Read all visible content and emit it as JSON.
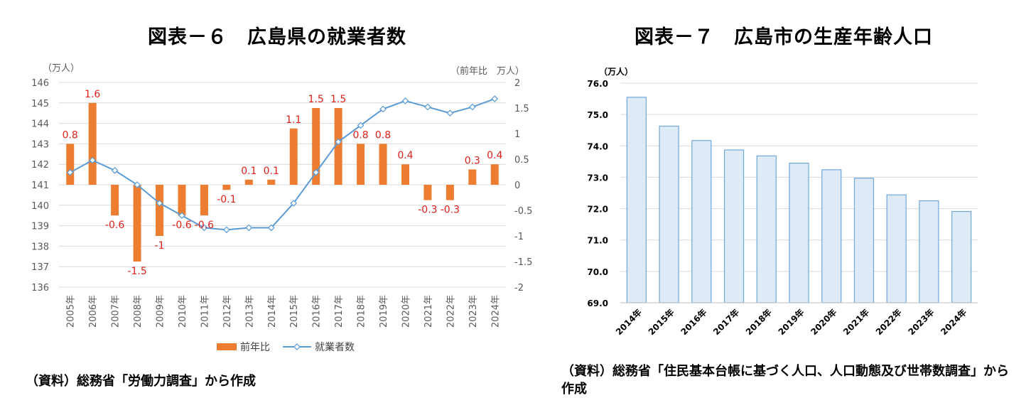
{
  "left_figure": {
    "title": "図表－６　広島県の就業者数",
    "source": "（資料）総務省「労働力調査」から作成"
  },
  "right_figure": {
    "title": "図表－７　広島市の生産年齢人口",
    "source": "（資料）総務省「住民基本台帳に基づく人口、人口動態及び世帯数調査」から作成"
  },
  "colors": {
    "bar_orange": "#ed7d31",
    "line_blue": "#5b9bd5",
    "bar_fill_light": "#deebf7",
    "bar_stroke": "#6fa8dc",
    "label_red": "#e0201b"
  },
  "chart_data": [
    {
      "type": "bar+line",
      "title": "図表－６　広島県の就業者数",
      "categories": [
        "2005年",
        "2006年",
        "2007年",
        "2008年",
        "2009年",
        "2010年",
        "2011年",
        "2012年",
        "2013年",
        "2014年",
        "2015年",
        "2016年",
        "2017年",
        "2018年",
        "2019年",
        "2020年",
        "2021年",
        "2022年",
        "2023年",
        "2024年"
      ],
      "y_left_unit": "（万人）",
      "y_right_unit": "（前年比　万人）",
      "y_left_range": [
        136,
        146
      ],
      "y_left_ticks": [
        136,
        137,
        138,
        139,
        140,
        141,
        142,
        143,
        144,
        145,
        146
      ],
      "y_right_range": [
        -2,
        2
      ],
      "y_right_ticks": [
        "2",
        "1.5",
        "1",
        "0.5",
        "0",
        "-0.5",
        "-1",
        "-1.5",
        "-2"
      ],
      "series": [
        {
          "name": "前年比",
          "type": "bar",
          "axis": "right",
          "values": [
            0.8,
            1.6,
            -0.6,
            -1.5,
            -1,
            -0.6,
            -0.6,
            -0.1,
            0.1,
            0.1,
            1.1,
            1.5,
            1.5,
            0.8,
            0.8,
            0.4,
            -0.3,
            -0.3,
            0.3,
            0.4
          ],
          "labels": [
            "0.8",
            "1.6",
            "-0.6",
            "-1.5",
            "-1",
            "-0.6",
            "-0.6",
            "-0.1",
            "0.1",
            "0.1",
            "1.1",
            "1.5",
            "1.5",
            "0.8",
            "0.8",
            "0.4",
            "-0.3",
            "-0.3",
            "0.3",
            "0.4"
          ]
        },
        {
          "name": "就業者数",
          "type": "line",
          "axis": "left",
          "values": [
            141.6,
            142.2,
            141.7,
            141.0,
            140.1,
            139.5,
            138.9,
            138.8,
            138.9,
            138.9,
            140.1,
            141.6,
            143.1,
            143.9,
            144.7,
            145.1,
            144.8,
            144.5,
            144.8,
            145.2
          ]
        }
      ],
      "legend": [
        "前年比",
        "就業者数"
      ],
      "legend_position": "bottom"
    },
    {
      "type": "bar",
      "title": "図表－７　広島市の生産年齢人口",
      "categories": [
        "2014年",
        "2015年",
        "2016年",
        "2017年",
        "2018年",
        "2019年",
        "2020年",
        "2021年",
        "2022年",
        "2023年",
        "2024年"
      ],
      "y_unit": "（万人）",
      "y_range": [
        69.0,
        76.0
      ],
      "y_ticks": [
        "69.0",
        "70.0",
        "71.0",
        "72.0",
        "73.0",
        "74.0",
        "75.0",
        "76.0"
      ],
      "values": [
        75.55,
        74.63,
        74.17,
        73.87,
        73.68,
        73.45,
        73.24,
        72.97,
        72.44,
        72.25,
        71.91
      ]
    }
  ]
}
